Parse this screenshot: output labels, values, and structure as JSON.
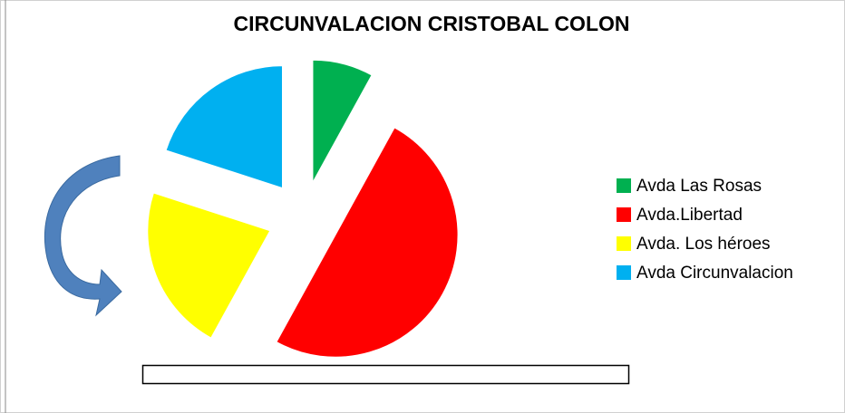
{
  "chart_data": {
    "type": "pie",
    "title": "CIRCUNVALACION CRISTOBAL COLON",
    "categories": [
      "Avda Las Rosas",
      "Avda.Libertad",
      "Avda. Los héroes",
      "Avda Circunvalacion"
    ],
    "values": [
      8,
      50,
      22,
      20
    ],
    "colors": [
      "#00b050",
      "#ff0000",
      "#ffff00",
      "#00b0f0"
    ],
    "legend": "right"
  }
}
